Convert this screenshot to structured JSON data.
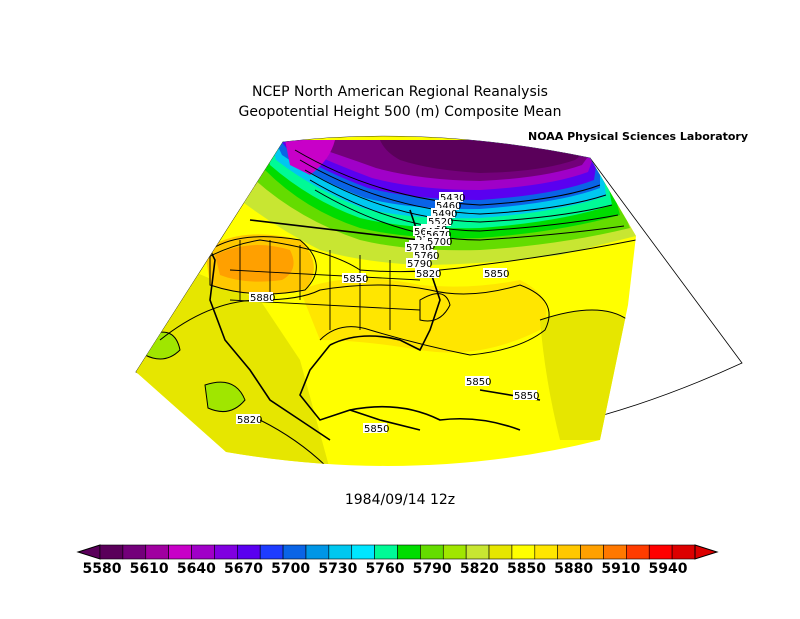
{
  "title_line1": "NCEP North American Regional Reanalysis",
  "title_line2": "Geopotential Height 500 (m) Composite Mean",
  "credit": "NOAA Physical Sciences Laboratory",
  "date": "1984/09/14 12z",
  "colorbar": {
    "labels": [
      "5580",
      "5610",
      "5640",
      "5670",
      "5700",
      "5730",
      "5760",
      "5790",
      "5820",
      "5850",
      "5880",
      "5910",
      "5940"
    ],
    "colors": [
      "#5a005a",
      "#73007a",
      "#a000a0",
      "#c800c8",
      "#a000c8",
      "#8000e0",
      "#5a00f0",
      "#1e3cff",
      "#0a64e6",
      "#0096e6",
      "#00c8f0",
      "#00e6ff",
      "#00fa96",
      "#00dc00",
      "#64dc00",
      "#a0e600",
      "#c8e632",
      "#e6e600",
      "#ffff00",
      "#ffe600",
      "#ffc800",
      "#ffa000",
      "#ff7800",
      "#ff3c00",
      "#ff0000",
      "#dc0000"
    ]
  },
  "map": {
    "contour_labels": [
      "5430",
      "5460",
      "5490",
      "5520",
      "5550",
      "5580",
      "5610",
      "5640",
      "5670",
      "5700",
      "5730",
      "5760",
      "5790",
      "5820",
      "5850",
      "5880",
      "5850",
      "5850",
      "5850",
      "5820"
    ]
  }
}
